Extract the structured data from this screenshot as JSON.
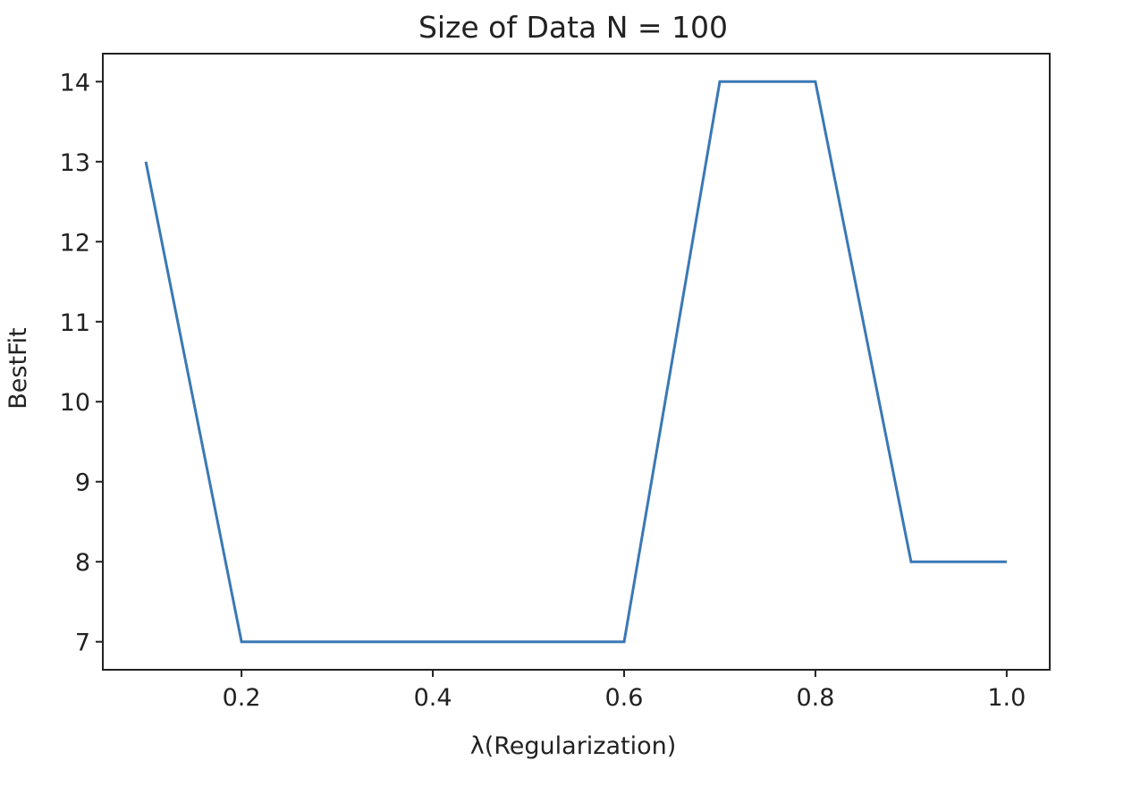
{
  "chart_data": {
    "type": "line",
    "title": "Size of Data N = 100",
    "xlabel": "λ(Regularization)",
    "ylabel": "BestFit",
    "xlim": [
      0.055,
      1.045
    ],
    "ylim": [
      6.65,
      14.35
    ],
    "xticks": [
      0.2,
      0.4,
      0.6,
      0.8,
      1.0
    ],
    "xtick_labels": [
      "0.2",
      "0.4",
      "0.6",
      "0.8",
      "1.0"
    ],
    "yticks": [
      7,
      8,
      9,
      10,
      11,
      12,
      13,
      14
    ],
    "ytick_labels": [
      "7",
      "8",
      "9",
      "10",
      "11",
      "12",
      "13",
      "14"
    ],
    "grid": false,
    "series": [
      {
        "color": "#3a78b5",
        "x": [
          0.1,
          0.2,
          0.3,
          0.4,
          0.5,
          0.6,
          0.7,
          0.8,
          0.9,
          1.0
        ],
        "y": [
          13,
          7,
          7,
          7,
          7,
          7,
          14,
          14,
          8,
          8
        ]
      }
    ]
  }
}
